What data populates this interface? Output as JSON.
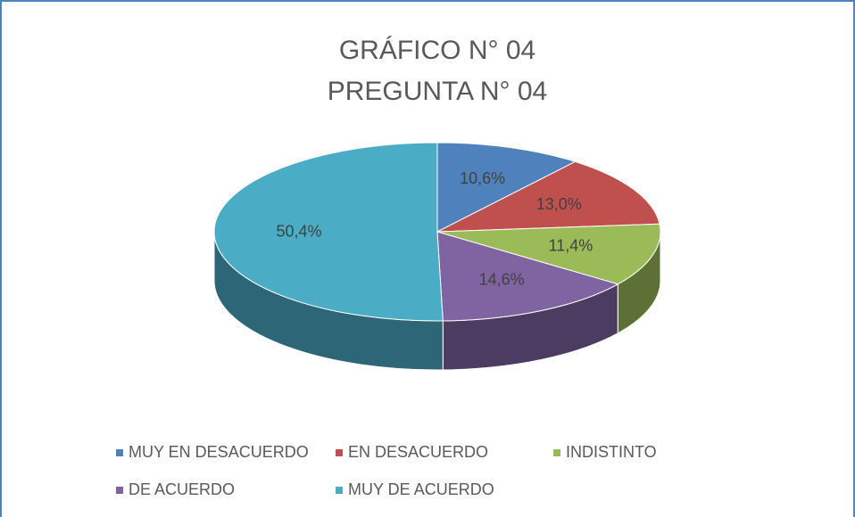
{
  "chart_data": {
    "type": "pie",
    "title": "GRÁFICO N° 04",
    "subtitle": "PREGUNTA N° 04",
    "categories": [
      "MUY EN DESACUERDO",
      "EN DESACUERDO",
      "INDISTINTO",
      "DE ACUERDO",
      "MUY DE ACUERDO"
    ],
    "values": [
      10.6,
      13.0,
      11.4,
      14.6,
      50.4
    ],
    "value_labels": [
      "10,6%",
      "13,0%",
      "11,4%",
      "14,6%",
      "50,4%"
    ],
    "colors": [
      "#4f81bd",
      "#c0504d",
      "#9bbb59",
      "#8064a2",
      "#4bacc6"
    ],
    "legend": "bottom"
  }
}
